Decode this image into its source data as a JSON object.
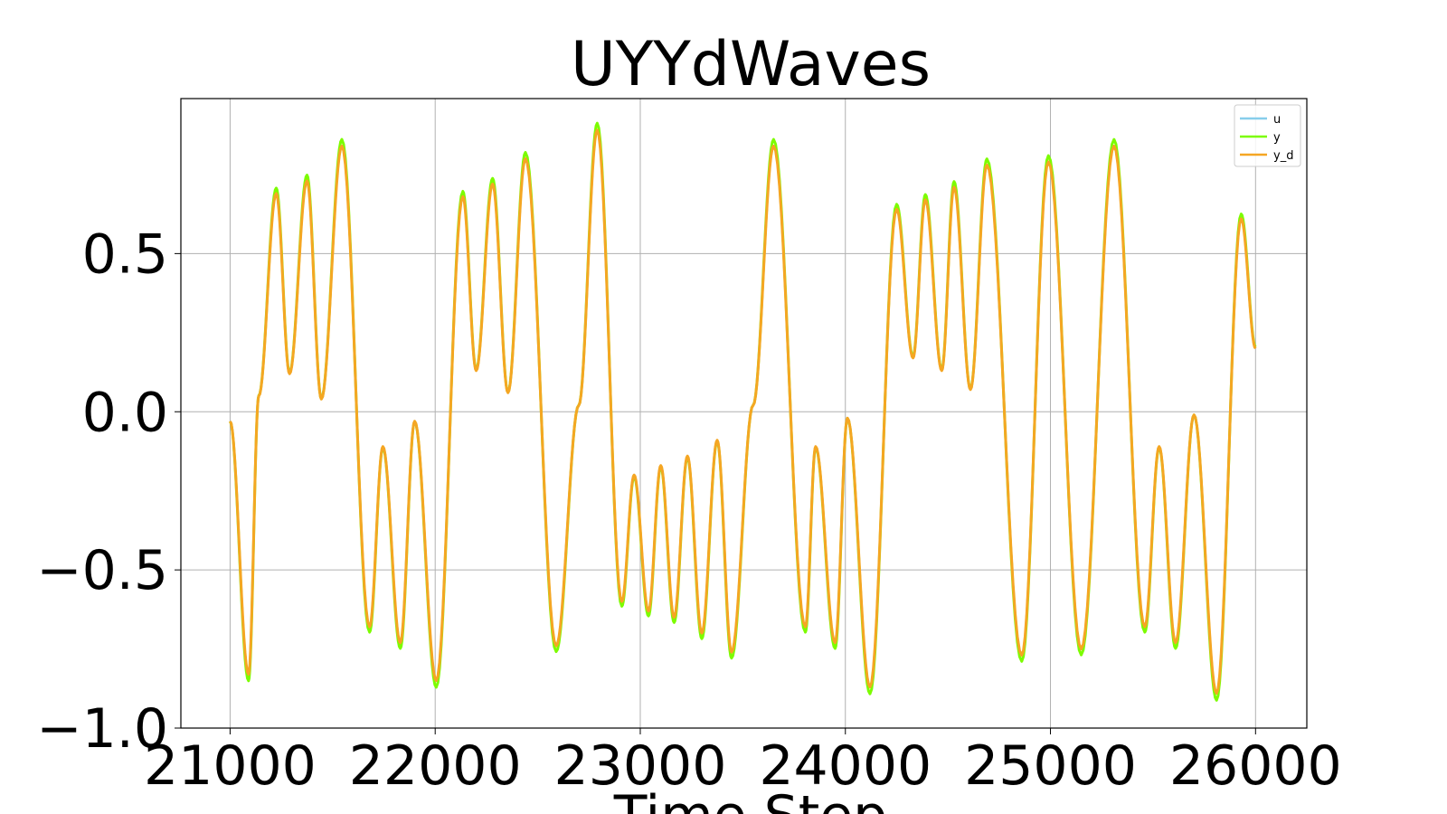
{
  "chart_data": {
    "type": "line",
    "title": "UYYdWaves",
    "xlabel": "Time Step",
    "ylabel": "",
    "xlim": [
      20760,
      26250
    ],
    "ylim": [
      -1.0,
      0.99
    ],
    "xticks": [
      21000,
      22000,
      23000,
      24000,
      25000,
      26000
    ],
    "xtick_labels": [
      "21000",
      "22000",
      "23000",
      "24000",
      "25000",
      "26000"
    ],
    "yticks": [
      -1.0,
      -0.5,
      0.0,
      0.5
    ],
    "ytick_labels": [
      "−1.0",
      "−0.5",
      "0.0",
      "0.5"
    ],
    "grid": true,
    "legend_position": "top-right",
    "series": [
      {
        "name": "u",
        "color": "#87CEEB"
      },
      {
        "name": "y",
        "color": "#7CFC00"
      },
      {
        "name": "y_d",
        "color": "#F5A623"
      }
    ],
    "waveform_extrema": {
      "x": [
        21000,
        21090,
        21140,
        21225,
        21290,
        21375,
        21445,
        21545,
        21680,
        21745,
        21830,
        21900,
        22005,
        22135,
        22200,
        22280,
        22355,
        22440,
        22590,
        22700,
        22790,
        22910,
        22970,
        23040,
        23100,
        23165,
        23230,
        23300,
        23375,
        23445,
        23550,
        23650,
        23805,
        23855,
        23950,
        24010,
        24120,
        24250,
        24330,
        24390,
        24470,
        24530,
        24610,
        24690,
        24860,
        24990,
        25150,
        25310,
        25460,
        25530,
        25610,
        25700,
        25810,
        25930,
        26000
      ],
      "y_d": [
        -0.03,
        -0.83,
        0.05,
        0.69,
        0.12,
        0.73,
        0.04,
        0.84,
        -0.68,
        -0.11,
        -0.73,
        -0.03,
        -0.85,
        0.68,
        0.13,
        0.72,
        0.06,
        0.8,
        -0.74,
        0.02,
        0.89,
        -0.6,
        -0.2,
        -0.63,
        -0.17,
        -0.65,
        -0.14,
        -0.7,
        -0.09,
        -0.76,
        0.02,
        0.84,
        -0.68,
        -0.11,
        -0.73,
        -0.02,
        -0.87,
        0.64,
        0.17,
        0.67,
        0.13,
        0.71,
        0.07,
        0.78,
        -0.77,
        0.79,
        -0.75,
        0.84,
        -0.68,
        -0.11,
        -0.73,
        -0.01,
        -0.89,
        0.61,
        0.2
      ]
    }
  }
}
